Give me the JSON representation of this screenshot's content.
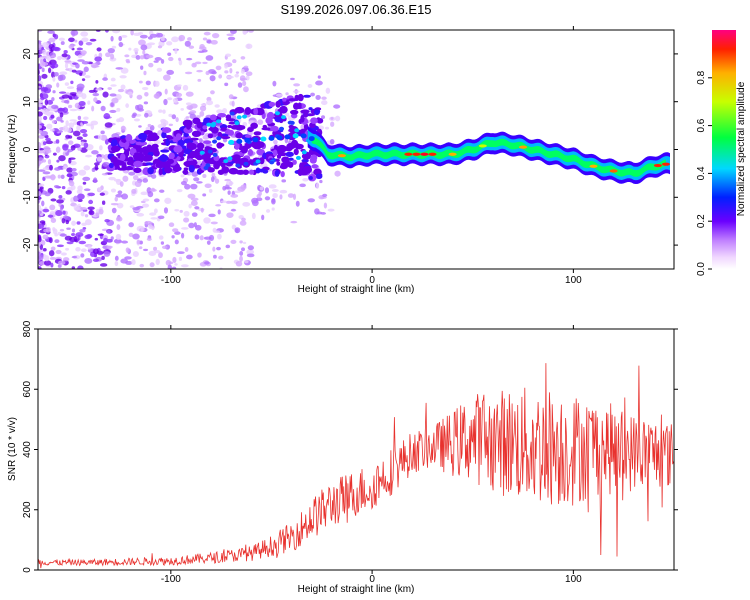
{
  "title": "S199.2026.097.06.36.E15",
  "chart_data": [
    {
      "type": "heatmap",
      "name": "spectrogram",
      "xlabel": "Height of straight line (km)",
      "ylabel": "Frequency (Hz)",
      "xlim": [
        -166,
        150
      ],
      "ylim": [
        -25,
        25
      ],
      "xticks": [
        -100,
        0,
        100
      ],
      "yticks": [
        -20,
        -10,
        0,
        10,
        20
      ],
      "colorbar": {
        "label": "Normalized spectral amplitude",
        "range": [
          0,
          1
        ],
        "ticks": [
          "0.0",
          "0.2",
          "0.4",
          "0.6",
          "0.8"
        ],
        "tick_values": [
          0,
          0.2,
          0.4,
          0.6,
          0.8
        ]
      },
      "ridge": {
        "x": [
          -120,
          -100,
          -80,
          -60,
          -45,
          -35,
          -28,
          -22,
          -10,
          0,
          20,
          30,
          40,
          50,
          60,
          70,
          80,
          90,
          100,
          110,
          120,
          130,
          140,
          147
        ],
        "freq": [
          -1,
          0,
          1,
          2,
          2.5,
          3,
          2,
          -1,
          -1.5,
          -1,
          -1,
          -1,
          -1,
          0,
          1.5,
          1,
          0,
          -1,
          -2,
          -3.5,
          -4.5,
          -5,
          -3.5,
          -3
        ]
      }
    },
    {
      "type": "line",
      "name": "snr",
      "xlabel": "Height of straight line (km)",
      "ylabel": "SNR (10 * v/v)",
      "xlim": [
        -166,
        150
      ],
      "ylim": [
        0,
        800
      ],
      "xticks": [
        -100,
        0,
        100
      ],
      "yticks": [
        0,
        200,
        400,
        600,
        800
      ],
      "series": [
        {
          "name": "SNR",
          "color": "#e8322e",
          "x": [
            -166,
            -140,
            -120,
            -100,
            -80,
            -60,
            -50,
            -40,
            -30,
            -20,
            -10,
            0,
            10,
            20,
            30,
            40,
            50,
            60,
            70,
            80,
            90,
            100,
            110,
            120,
            130,
            140,
            150
          ],
          "mean": [
            25,
            25,
            28,
            30,
            40,
            55,
            80,
            110,
            170,
            220,
            250,
            280,
            330,
            390,
            410,
            420,
            440,
            430,
            420,
            410,
            410,
            400,
            410,
            400,
            390,
            390,
            380
          ],
          "spread": [
            10,
            10,
            12,
            14,
            18,
            25,
            35,
            50,
            70,
            80,
            80,
            80,
            80,
            70,
            70,
            110,
            150,
            170,
            190,
            200,
            200,
            190,
            170,
            150,
            130,
            120,
            110
          ]
        }
      ]
    }
  ]
}
